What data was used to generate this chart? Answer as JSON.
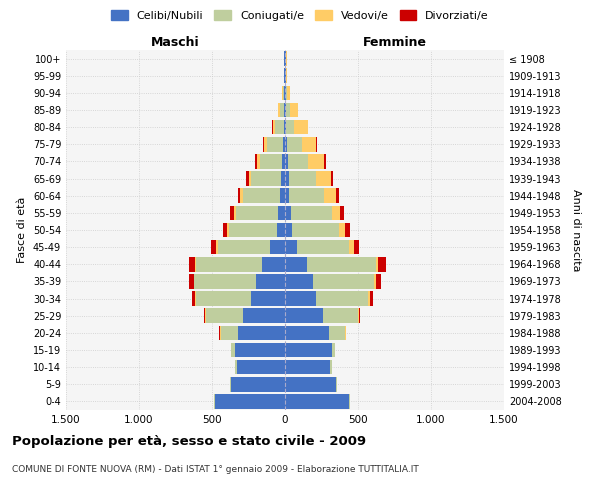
{
  "age_groups": [
    "0-4",
    "5-9",
    "10-14",
    "15-19",
    "20-24",
    "25-29",
    "30-34",
    "35-39",
    "40-44",
    "45-49",
    "50-54",
    "55-59",
    "60-64",
    "65-69",
    "70-74",
    "75-79",
    "80-84",
    "85-89",
    "90-94",
    "95-99",
    "100+"
  ],
  "birth_years": [
    "2004-2008",
    "1999-2003",
    "1994-1998",
    "1989-1993",
    "1984-1988",
    "1979-1983",
    "1974-1978",
    "1969-1973",
    "1964-1968",
    "1959-1963",
    "1954-1958",
    "1949-1953",
    "1944-1948",
    "1939-1943",
    "1934-1938",
    "1929-1933",
    "1924-1928",
    "1919-1923",
    "1914-1918",
    "1909-1913",
    "≤ 1908"
  ],
  "maschi": {
    "celibi": [
      480,
      370,
      330,
      340,
      320,
      290,
      230,
      200,
      160,
      100,
      55,
      45,
      35,
      30,
      20,
      15,
      10,
      5,
      5,
      5,
      5
    ],
    "coniugati": [
      5,
      5,
      10,
      30,
      120,
      250,
      380,
      420,
      450,
      360,
      330,
      290,
      250,
      200,
      150,
      110,
      60,
      30,
      10,
      5,
      5
    ],
    "vedovi": [
      0,
      0,
      0,
      0,
      5,
      5,
      5,
      5,
      5,
      10,
      10,
      15,
      20,
      20,
      25,
      20,
      15,
      10,
      5,
      0,
      0
    ],
    "divorziati": [
      0,
      0,
      0,
      0,
      5,
      10,
      20,
      30,
      40,
      35,
      30,
      25,
      20,
      15,
      10,
      5,
      5,
      0,
      0,
      0,
      0
    ]
  },
  "femmine": {
    "nubili": [
      440,
      350,
      310,
      320,
      300,
      260,
      210,
      190,
      150,
      80,
      50,
      40,
      30,
      25,
      20,
      15,
      10,
      5,
      5,
      5,
      5
    ],
    "coniugate": [
      5,
      5,
      10,
      25,
      110,
      240,
      360,
      420,
      470,
      360,
      320,
      280,
      240,
      190,
      140,
      100,
      55,
      30,
      10,
      5,
      5
    ],
    "vedove": [
      0,
      0,
      0,
      0,
      5,
      5,
      10,
      10,
      20,
      30,
      40,
      55,
      80,
      100,
      110,
      100,
      90,
      55,
      20,
      5,
      5
    ],
    "divorziate": [
      0,
      0,
      0,
      0,
      5,
      10,
      20,
      35,
      50,
      40,
      35,
      30,
      20,
      15,
      10,
      5,
      5,
      0,
      0,
      0,
      0
    ]
  },
  "colors": {
    "celibi_nubili": "#4472C4",
    "coniugati": "#BFCE9E",
    "vedovi": "#FFCC66",
    "divorziati": "#CC0000"
  },
  "xlim": 1500,
  "xticks": [
    -1500,
    -1000,
    -500,
    0,
    500,
    1000,
    1500
  ],
  "xticklabels": [
    "1.500",
    "1.000",
    "500",
    "0",
    "500",
    "1.000",
    "1.500"
  ],
  "title": "Popolazione per età, sesso e stato civile - 2009",
  "subtitle": "COMUNE DI FONTE NUOVA (RM) - Dati ISTAT 1° gennaio 2009 - Elaborazione TUTTITALIA.IT",
  "ylabel_left": "Fasce di età",
  "ylabel_right": "Anni di nascita",
  "legend_labels": [
    "Celibi/Nubili",
    "Coniugati/e",
    "Vedovi/e",
    "Divorziati/e"
  ],
  "maschi_label": "Maschi",
  "femmine_label": "Femmine",
  "bg_color": "#f5f5f5",
  "grid_color": "#cccccc"
}
